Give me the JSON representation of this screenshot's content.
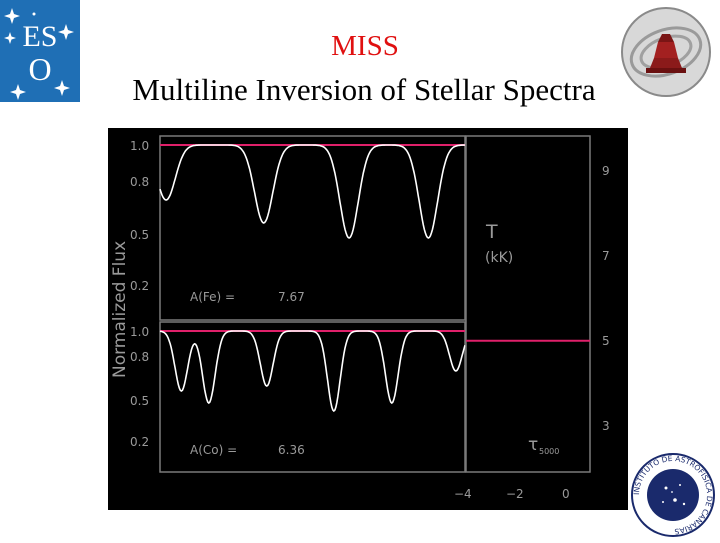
{
  "header": {
    "title": "MISS",
    "subtitle": "Multiline Inversion of Stellar Spectra"
  },
  "logos": {
    "eso": {
      "letters": [
        "E",
        "S",
        "O"
      ]
    },
    "mpia": {},
    "iac": {
      "text": "INSTITUTO DE ASTROFISICA DE CANARIAS"
    }
  },
  "colors": {
    "eso_blue": "#1f6fb5",
    "continuum_red": "#e0206a",
    "spectrum_white": "#ffffff",
    "axis_gray": "#9a9a9a",
    "title_red": "#e01010"
  },
  "figure": {
    "ylabel": "Normalized Flux",
    "top_panel": {
      "yticks": [
        "1.0",
        "0.8",
        "0.5",
        "0.2"
      ],
      "annotation_label": "A(Fe) =",
      "annotation_value": "7.67"
    },
    "bottom_panel": {
      "yticks": [
        "1.0",
        "0.8",
        "0.5",
        "0.2"
      ],
      "annotation_label": "A(Co) =",
      "annotation_value": "6.36"
    },
    "temperature_panel": {
      "label": "T",
      "unit": "(kK)",
      "right_ticks": [
        "9",
        "7",
        "5",
        "3"
      ],
      "xticks": [
        "−4",
        "−2",
        "0"
      ],
      "xlabel_tau": "τ",
      "xlabel_sub": "5000",
      "T_value_kK": 5.1
    }
  }
}
